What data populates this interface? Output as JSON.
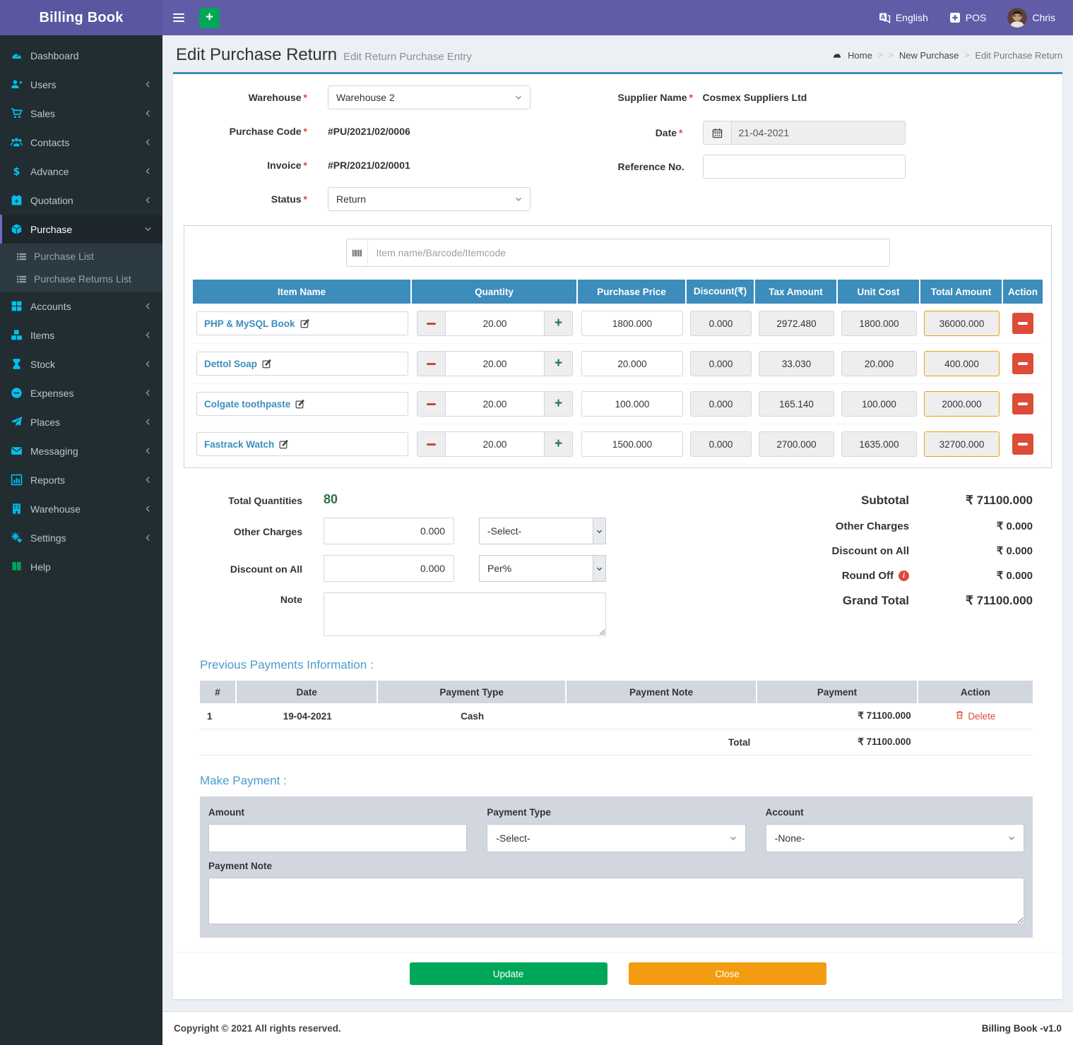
{
  "app": {
    "title": "Billing Book",
    "version_label": "Billing Book -v1.0",
    "copyright": "Copyright © 2021 All rights reserved."
  },
  "colors": {
    "topbar_purple": "#605ca8",
    "sidebar_dark": "#222d32",
    "icon_cyan": "#00c0ef",
    "primary_blue": "#3c8dbc",
    "success_green": "#00a65a",
    "warning_orange": "#f39c12",
    "danger_red": "#dd4b39",
    "content_bg": "#ecf0f5"
  },
  "topbar": {
    "language": "English",
    "pos_label": "POS",
    "user_name": "Chris"
  },
  "sidebar": {
    "items": [
      {
        "label": "Dashboard",
        "icon": "dashboard"
      },
      {
        "label": "Users",
        "icon": "users",
        "chevron": true
      },
      {
        "label": "Sales",
        "icon": "sales",
        "chevron": true
      },
      {
        "label": "Contacts",
        "icon": "contacts",
        "chevron": true
      },
      {
        "label": "Advance",
        "icon": "advance",
        "chevron": true
      },
      {
        "label": "Quotation",
        "icon": "quotation",
        "chevron": true
      },
      {
        "label": "Purchase",
        "icon": "purchase",
        "active": true,
        "expanded": true,
        "submenu": [
          "Purchase List",
          "Purchase Returns List"
        ]
      },
      {
        "label": "Accounts",
        "icon": "accounts",
        "chevron": true
      },
      {
        "label": "Items",
        "icon": "items",
        "chevron": true
      },
      {
        "label": "Stock",
        "icon": "stock",
        "chevron": true
      },
      {
        "label": "Expenses",
        "icon": "expenses",
        "chevron": true
      },
      {
        "label": "Places",
        "icon": "places",
        "chevron": true
      },
      {
        "label": "Messaging",
        "icon": "messaging",
        "chevron": true
      },
      {
        "label": "Reports",
        "icon": "reports",
        "chevron": true
      },
      {
        "label": "Warehouse",
        "icon": "warehouse",
        "chevron": true
      },
      {
        "label": "Settings",
        "icon": "settings",
        "chevron": true
      },
      {
        "label": "Help",
        "icon": "help",
        "icon_color": "#00a65a"
      }
    ]
  },
  "page": {
    "title": "Edit Purchase Return",
    "subtitle": "Edit Return Purchase Entry",
    "breadcrumb": [
      "Home",
      "",
      "New Purchase",
      "Edit Purchase Return"
    ]
  },
  "misc": {
    "required_marker": "*"
  },
  "form": {
    "warehouse": {
      "label": "Warehouse",
      "value": "Warehouse 2"
    },
    "purchase_code": {
      "label": "Purchase Code",
      "value": "#PU/2021/02/0006"
    },
    "invoice": {
      "label": "Invoice",
      "value": "#PR/2021/02/0001"
    },
    "status": {
      "label": "Status",
      "value": "Return"
    },
    "supplier": {
      "label": "Supplier Name",
      "value": "Cosmex Suppliers Ltd"
    },
    "date": {
      "label": "Date",
      "value": "21-04-2021"
    },
    "reference": {
      "label": "Reference No.",
      "value": ""
    }
  },
  "item_search": {
    "placeholder": "Item name/Barcode/Itemcode"
  },
  "items_table": {
    "headers": [
      "Item Name",
      "Quantity",
      "Purchase Price",
      "Discount(₹)",
      "Tax Amount",
      "Unit Cost",
      "Total Amount",
      "Action"
    ],
    "rows": [
      {
        "name": "PHP & MySQL Book",
        "quantity": "20.00",
        "purchase_price": "1800.000",
        "discount": "0.000",
        "tax_amount": "2972.480",
        "unit_cost": "1800.000",
        "total_amount": "36000.000"
      },
      {
        "name": "Dettol Soap",
        "quantity": "20.00",
        "purchase_price": "20.000",
        "discount": "0.000",
        "tax_amount": "33.030",
        "unit_cost": "20.000",
        "total_amount": "400.000"
      },
      {
        "name": "Colgate toothpaste",
        "quantity": "20.00",
        "purchase_price": "100.000",
        "discount": "0.000",
        "tax_amount": "165.140",
        "unit_cost": "100.000",
        "total_amount": "2000.000"
      },
      {
        "name": "Fastrack Watch",
        "quantity": "20.00",
        "purchase_price": "1500.000",
        "discount": "0.000",
        "tax_amount": "2700.000",
        "unit_cost": "1635.000",
        "total_amount": "32700.000"
      }
    ]
  },
  "totals_left": {
    "total_quantities_label": "Total Quantities",
    "total_quantities_value": "80",
    "other_charges_label": "Other Charges",
    "other_charges_value": "0.000",
    "other_charges_select": "-Select-",
    "discount_label": "Discount on All",
    "discount_value": "0.000",
    "discount_select": "Per%",
    "note_label": "Note",
    "note_value": ""
  },
  "totals_right": {
    "rows": [
      {
        "label": "Subtotal",
        "value": "₹ 71100.000",
        "strong": true
      },
      {
        "label": "Other Charges",
        "value": "₹ 0.000"
      },
      {
        "label": "Discount on All",
        "value": "₹ 0.000"
      },
      {
        "label": "Round Off",
        "value": "₹ 0.000",
        "info": true
      },
      {
        "label": "Grand Total",
        "value": "₹ 71100.000",
        "strong": true
      }
    ]
  },
  "previous_payments": {
    "title": "Previous Payments Information :",
    "headers": [
      "#",
      "Date",
      "Payment Type",
      "Payment Note",
      "Payment",
      "Action"
    ],
    "rows": [
      {
        "num": "1",
        "date": "19-04-2021",
        "type": "Cash",
        "note": "",
        "payment": "₹ 71100.000",
        "action": "Delete"
      }
    ],
    "total_label": "Total",
    "total_value": "₹ 71100.000"
  },
  "make_payment": {
    "title": "Make Payment :",
    "amount_label": "Amount",
    "amount_value": "",
    "payment_type_label": "Payment Type",
    "payment_type_value": "-Select-",
    "account_label": "Account",
    "account_value": "-None-",
    "note_label": "Payment Note",
    "note_value": ""
  },
  "actions": {
    "update": "Update",
    "close": "Close"
  }
}
